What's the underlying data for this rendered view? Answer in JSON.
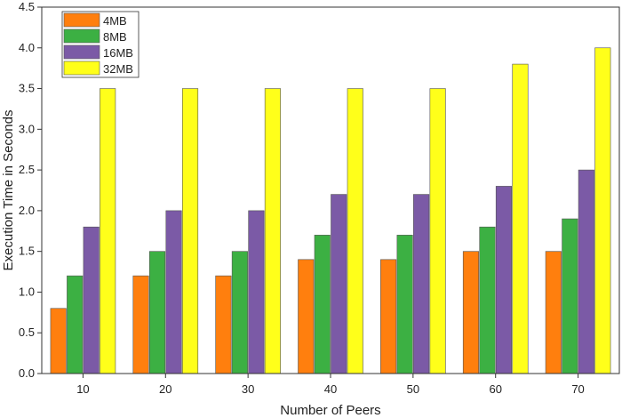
{
  "chart_data": {
    "type": "bar",
    "categories": [
      "10",
      "20",
      "30",
      "40",
      "50",
      "60",
      "70"
    ],
    "series": [
      {
        "name": "4MB",
        "color": "#ff7f0e",
        "values": [
          0.8,
          1.2,
          1.2,
          1.4,
          1.4,
          1.5,
          1.5
        ]
      },
      {
        "name": "8MB",
        "color": "#3cb043",
        "values": [
          1.2,
          1.5,
          1.5,
          1.7,
          1.7,
          1.8,
          1.9
        ]
      },
      {
        "name": "16MB",
        "color": "#7b5aa6",
        "values": [
          1.8,
          2.0,
          2.0,
          2.2,
          2.2,
          2.3,
          2.5
        ]
      },
      {
        "name": "32MB",
        "color": "#ffff1a",
        "values": [
          3.5,
          3.5,
          3.5,
          3.5,
          3.5,
          3.8,
          4.0
        ]
      }
    ],
    "xlabel": "Number of Peers",
    "ylabel": "Execution Time in Seconds",
    "ylim": [
      0,
      4.5
    ],
    "yticks": [
      "0.0",
      "0.5",
      "1.0",
      "1.5",
      "2.0",
      "2.5",
      "3.0",
      "3.5",
      "4.0",
      "4.5"
    ],
    "grid": false,
    "legend": "top-left"
  }
}
